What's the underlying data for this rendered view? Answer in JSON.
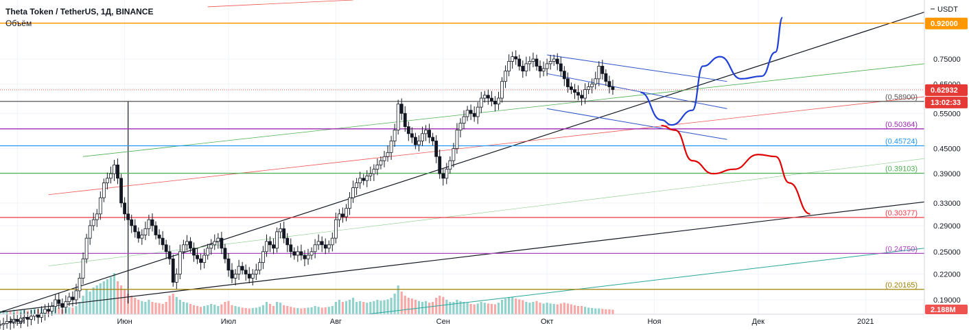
{
  "legend": {
    "title": "Theta Token / TetherUS, 1Д, BINANCE",
    "volume_label": "Объём"
  },
  "axis": {
    "currency": "USDT",
    "x_ticks": [
      "Май",
      "Июн",
      "Июл",
      "Авг",
      "Сен",
      "Окт",
      "Ноя",
      "Дек",
      "2021"
    ],
    "y_ticks": [
      "0.75000",
      "0.65000",
      "0.55000",
      "0.45000",
      "0.39000",
      "0.33000",
      "0.29000",
      "0.25000",
      "0.22000",
      "0.19000"
    ]
  },
  "tags": {
    "target": "0.92000",
    "last_price": "0.62932",
    "countdown": "13:02:33",
    "volume": "2.188M"
  },
  "levels": [
    {
      "value": "0.58900",
      "color": "#555555"
    },
    {
      "value": "0.50364",
      "color": "#9c27b0"
    },
    {
      "value": "0.45724",
      "color": "#2196f3"
    },
    {
      "value": "0.39103",
      "color": "#4caf50"
    },
    {
      "value": "0.30377",
      "color": "#f23645"
    },
    {
      "value": "0.24750",
      "color": "#ab47bc"
    },
    {
      "value": "0.20165",
      "color": "#a08000"
    }
  ],
  "colors": {
    "up": "#26a69a",
    "down": "#ef5350",
    "orange_line": "#ff9800",
    "projection_up": "#1e3fd8",
    "projection_down": "#e00000"
  },
  "chart_data": {
    "type": "candlestick",
    "symbol": "Theta Token / TetherUS",
    "timeframe": "1Д",
    "exchange": "BINANCE",
    "y_scale": "log",
    "ylim": [
      0.175,
      1.05
    ],
    "x_range": [
      "2020-04-26",
      "2021-01-18"
    ],
    "candles": {
      "start": "2020-04-26",
      "close": [
        0.165,
        0.166,
        0.168,
        0.167,
        0.17,
        0.168,
        0.171,
        0.172,
        0.17,
        0.173,
        0.175,
        0.172,
        0.176,
        0.18,
        0.178,
        0.183,
        0.19,
        0.186,
        0.182,
        0.188,
        0.193,
        0.19,
        0.2,
        0.215,
        0.24,
        0.27,
        0.29,
        0.3,
        0.31,
        0.34,
        0.37,
        0.38,
        0.39,
        0.41,
        0.38,
        0.33,
        0.31,
        0.3,
        0.29,
        0.28,
        0.27,
        0.275,
        0.285,
        0.3,
        0.29,
        0.275,
        0.27,
        0.26,
        0.25,
        0.24,
        0.21,
        0.22,
        0.25,
        0.26,
        0.265,
        0.255,
        0.245,
        0.24,
        0.235,
        0.245,
        0.255,
        0.26,
        0.265,
        0.27,
        0.255,
        0.24,
        0.225,
        0.215,
        0.22,
        0.23,
        0.225,
        0.22,
        0.215,
        0.22,
        0.225,
        0.235,
        0.25,
        0.265,
        0.26,
        0.255,
        0.28,
        0.285,
        0.27,
        0.26,
        0.25,
        0.245,
        0.25,
        0.245,
        0.24,
        0.245,
        0.25,
        0.26,
        0.265,
        0.26,
        0.255,
        0.26,
        0.27,
        0.3,
        0.31,
        0.305,
        0.32,
        0.34,
        0.36,
        0.37,
        0.38,
        0.375,
        0.385,
        0.39,
        0.4,
        0.41,
        0.42,
        0.43,
        0.44,
        0.47,
        0.5,
        0.58,
        0.55,
        0.51,
        0.49,
        0.48,
        0.46,
        0.47,
        0.49,
        0.5,
        0.48,
        0.47,
        0.43,
        0.39,
        0.38,
        0.4,
        0.42,
        0.45,
        0.5,
        0.52,
        0.54,
        0.56,
        0.55,
        0.54,
        0.57,
        0.6,
        0.61,
        0.6,
        0.59,
        0.58,
        0.6,
        0.66,
        0.7,
        0.74,
        0.76,
        0.75,
        0.72,
        0.7,
        0.73,
        0.74,
        0.75,
        0.72,
        0.7,
        0.71,
        0.73,
        0.74,
        0.75,
        0.73,
        0.7,
        0.67,
        0.64,
        0.63,
        0.62,
        0.61,
        0.6,
        0.63,
        0.64,
        0.65,
        0.67,
        0.72,
        0.69,
        0.66,
        0.64,
        0.63
      ],
      "volume_scale": "relative 0-1",
      "volume": [
        0.08,
        0.1,
        0.07,
        0.09,
        0.11,
        0.08,
        0.1,
        0.12,
        0.09,
        0.11,
        0.15,
        0.12,
        0.14,
        0.1,
        0.12,
        0.13,
        0.18,
        0.15,
        0.12,
        0.14,
        0.17,
        0.16,
        0.2,
        0.3,
        0.45,
        0.6,
        0.55,
        0.65,
        0.7,
        0.75,
        0.8,
        0.85,
        0.9,
        1.0,
        0.8,
        0.7,
        0.6,
        0.5,
        0.45,
        0.4,
        0.35,
        0.32,
        0.3,
        0.35,
        0.3,
        0.28,
        0.27,
        0.25,
        0.3,
        0.45,
        0.5,
        0.42,
        0.35,
        0.3,
        0.28,
        0.25,
        0.22,
        0.2,
        0.18,
        0.2,
        0.22,
        0.25,
        0.23,
        0.2,
        0.24,
        0.3,
        0.32,
        0.22,
        0.2,
        0.18,
        0.16,
        0.15,
        0.14,
        0.15,
        0.16,
        0.18,
        0.22,
        0.3,
        0.25,
        0.2,
        0.3,
        0.28,
        0.22,
        0.2,
        0.18,
        0.16,
        0.15,
        0.14,
        0.15,
        0.16,
        0.17,
        0.2,
        0.18,
        0.16,
        0.17,
        0.18,
        0.2,
        0.3,
        0.35,
        0.3,
        0.32,
        0.35,
        0.4,
        0.3,
        0.32,
        0.3,
        0.28,
        0.3,
        0.32,
        0.35,
        0.33,
        0.34,
        0.36,
        0.4,
        0.5,
        0.7,
        0.55,
        0.45,
        0.4,
        0.38,
        0.35,
        0.32,
        0.3,
        0.32,
        0.28,
        0.3,
        0.4,
        0.45,
        0.42,
        0.35,
        0.3,
        0.3,
        0.35,
        0.32,
        0.3,
        0.28,
        0.25,
        0.24,
        0.26,
        0.3,
        0.28,
        0.26,
        0.25,
        0.24,
        0.28,
        0.35,
        0.38,
        0.4,
        0.42,
        0.38,
        0.36,
        0.34,
        0.3,
        0.28,
        0.3,
        0.32,
        0.28,
        0.26,
        0.28,
        0.26,
        0.25,
        0.24,
        0.26,
        0.28,
        0.26,
        0.24,
        0.22,
        0.2,
        0.2,
        0.18,
        0.16,
        0.15,
        0.14,
        0.14,
        0.13,
        0.12,
        0.12,
        0.11
      ]
    },
    "horizontal_levels": [
      0.92,
      0.589,
      0.50364,
      0.45724,
      0.39103,
      0.30377,
      0.2475,
      0.20165
    ],
    "last_price": 0.62932
  }
}
